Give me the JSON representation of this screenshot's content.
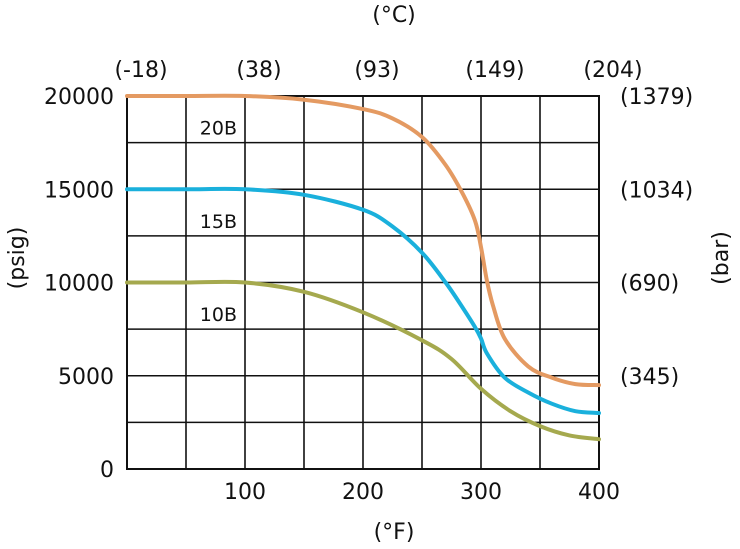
{
  "chart_data": {
    "type": "line",
    "title": "",
    "top_axis_unit": "(°C)",
    "bottom_axis_unit": "(°F)",
    "left_axis_unit": "(psig)",
    "right_axis_unit": "(bar)",
    "xlim": [
      0,
      400
    ],
    "ylim": [
      0,
      20000
    ],
    "x_grid_step": 50,
    "y_grid_step": 5000,
    "grid": true,
    "x_ticks": [
      {
        "value": 100,
        "label": "100"
      },
      {
        "value": 200,
        "label": "200"
      },
      {
        "value": 300,
        "label": "300"
      },
      {
        "value": 400,
        "label": "400"
      }
    ],
    "top_ticks": [
      {
        "value": 0,
        "label": "(-18)"
      },
      {
        "value": 100,
        "label": "(38)"
      },
      {
        "value": 200,
        "label": "(93)"
      },
      {
        "value": 300,
        "label": "(149)"
      },
      {
        "value": 400,
        "label": "(204)"
      }
    ],
    "y_ticks": [
      {
        "value": 0,
        "label": "0"
      },
      {
        "value": 5000,
        "label": "5000"
      },
      {
        "value": 10000,
        "label": "10000"
      },
      {
        "value": 15000,
        "label": "15000"
      },
      {
        "value": 20000,
        "label": "20000"
      }
    ],
    "right_ticks": [
      {
        "value": 5000,
        "label": "(345)"
      },
      {
        "value": 10000,
        "label": "(690)"
      },
      {
        "value": 15000,
        "label": "(1034)"
      },
      {
        "value": 20000,
        "label": "(1379)"
      }
    ],
    "series": [
      {
        "name": "20B",
        "color": "#e49a62",
        "label_at": [
          100,
          18300
        ],
        "x": [
          0,
          50,
          100,
          150,
          200,
          225,
          250,
          270,
          285,
          295,
          300,
          305,
          310,
          320,
          340,
          360,
          380,
          400
        ],
        "y": [
          20000,
          20000,
          20000,
          19800,
          19300,
          18800,
          17800,
          16300,
          14700,
          13300,
          11900,
          10100,
          8800,
          7000,
          5500,
          4900,
          4550,
          4500
        ]
      },
      {
        "name": "15B",
        "color": "#1ab0dc",
        "label_at": [
          100,
          13300
        ],
        "x": [
          0,
          50,
          100,
          150,
          200,
          225,
          250,
          270,
          285,
          295,
          300,
          305,
          320,
          340,
          360,
          380,
          400
        ],
        "y": [
          15000,
          15000,
          15000,
          14700,
          13900,
          13000,
          11600,
          10000,
          8600,
          7600,
          7000,
          6200,
          4900,
          4100,
          3500,
          3100,
          3000
        ]
      },
      {
        "name": "10B",
        "color": "#a5a94e",
        "label_at": [
          100,
          8300
        ],
        "x": [
          0,
          50,
          100,
          150,
          200,
          250,
          275,
          300,
          325,
          350,
          375,
          400
        ],
        "y": [
          10000,
          10000,
          10000,
          9500,
          8400,
          6900,
          5900,
          4300,
          3100,
          2300,
          1800,
          1600
        ]
      }
    ]
  }
}
